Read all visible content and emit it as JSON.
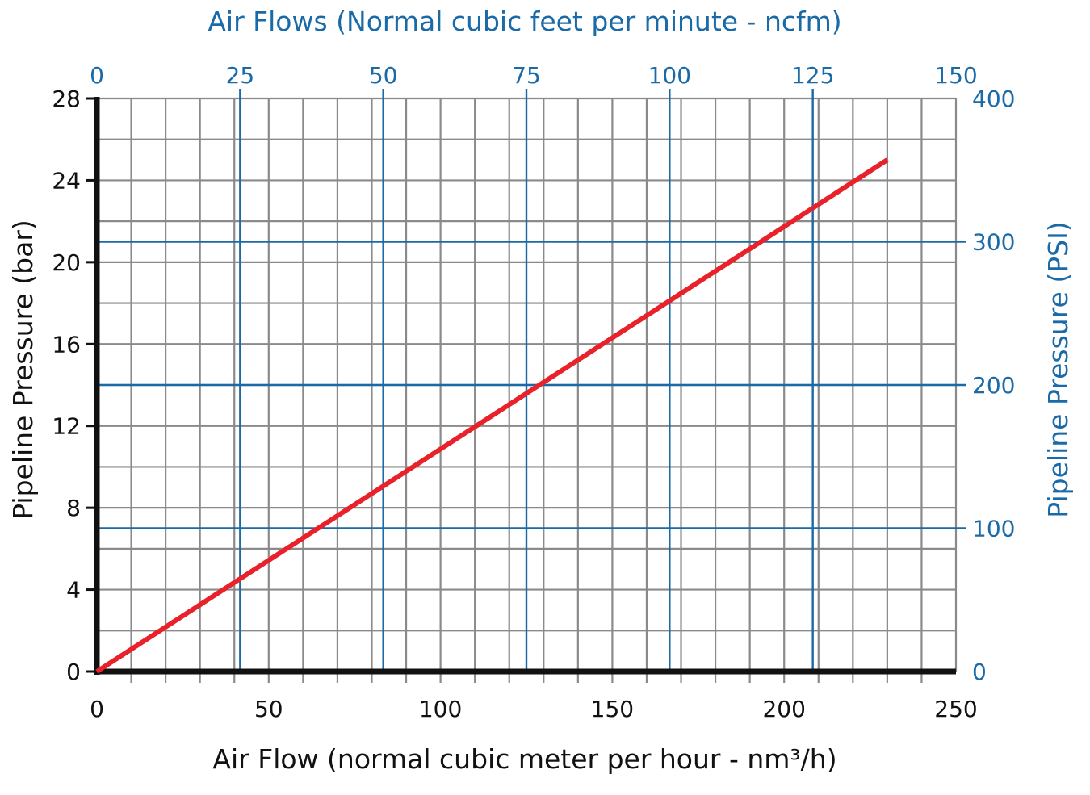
{
  "chart_data": {
    "type": "line",
    "xlabel": "Air Flow (normal cubic meter per hour - nm³/h)",
    "ylabel": "Pipeline Pressure (bar)",
    "x2label": "Air Flows (Normal cubic feet per minute - ncfm)",
    "y2label": "Pipeline Pressure (PSI)",
    "xlim": [
      0,
      250
    ],
    "ylim": [
      0,
      28
    ],
    "x2lim": [
      0,
      150
    ],
    "y2lim": [
      0,
      400
    ],
    "x_ticks": [
      "0",
      "50",
      "100",
      "150",
      "200",
      "250"
    ],
    "y_ticks": [
      "0",
      "4",
      "8",
      "12",
      "16",
      "20",
      "24",
      "28"
    ],
    "x2_ticks": [
      "0",
      "25",
      "50",
      "75",
      "100",
      "125",
      "150"
    ],
    "y2_ticks": [
      "0",
      "100",
      "200",
      "300",
      "400"
    ],
    "grid": true,
    "series": [
      {
        "color": "#e8212a",
        "x": [
          0,
          230
        ],
        "y": [
          0,
          25
        ]
      }
    ],
    "colors": {
      "primary_axis": "#111111",
      "secondary_axis": "#1a6aa8",
      "minor_grid": "#8a8a8a",
      "secondary_grid": "#1a6aa8"
    }
  }
}
